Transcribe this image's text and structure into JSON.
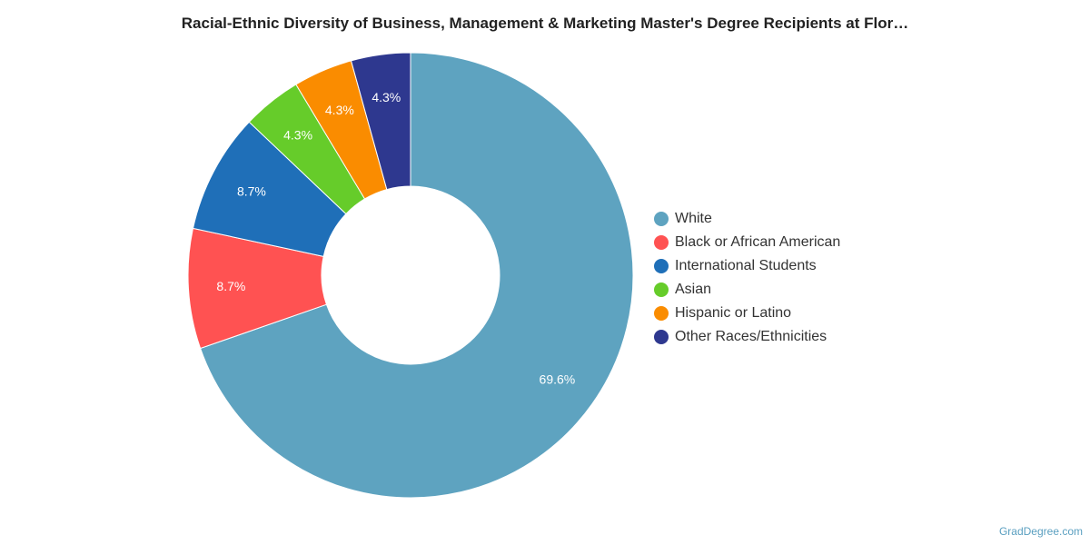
{
  "chart_data": {
    "type": "pie",
    "variant": "donut",
    "title": "Racial-Ethnic Diversity of Business, Management & Marketing Master's Degree Recipients at Flor…",
    "slices": [
      {
        "name": "White",
        "value": 69.6,
        "label": "69.6%",
        "color": "#5ea3c0"
      },
      {
        "name": "Black or African American",
        "value": 8.7,
        "label": "8.7%",
        "color": "#ff5252"
      },
      {
        "name": "International Students",
        "value": 8.7,
        "label": "8.7%",
        "color": "#1f6fb8"
      },
      {
        "name": "Asian",
        "value": 4.3,
        "label": "4.3%",
        "color": "#66cc2a"
      },
      {
        "name": "Hispanic or Latino",
        "value": 4.3,
        "label": "4.3%",
        "color": "#fa8c00"
      },
      {
        "name": "Other Races/Ethnicities",
        "value": 4.3,
        "label": "4.3%",
        "color": "#2e388f"
      }
    ],
    "legend_position": "right"
  },
  "credit": "GradDegree.com"
}
